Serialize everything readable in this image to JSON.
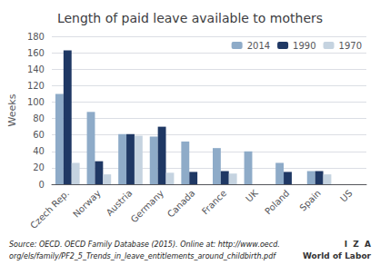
{
  "chart_data": {
    "type": "bar",
    "title": "Length of paid leave available to mothers",
    "ylabel": "Weeks",
    "categories": [
      "Czech Rep.",
      "Norway",
      "Austria",
      "Germany",
      "Canada",
      "France",
      "UK",
      "Poland",
      "Spain",
      "US"
    ],
    "series": [
      {
        "name": "2014",
        "color": "#8eabc8",
        "values": [
          110,
          88,
          61,
          58,
          52,
          44,
          40,
          26,
          16,
          0
        ]
      },
      {
        "name": "1990",
        "color": "#1f3864",
        "values": [
          163,
          28,
          61,
          70,
          15,
          16,
          0,
          15,
          16,
          0
        ]
      },
      {
        "name": "1970",
        "color": "#c5d3e0",
        "values": [
          26,
          12,
          59,
          14,
          0,
          13,
          0,
          0,
          12,
          0
        ]
      }
    ],
    "ylim": [
      0,
      180
    ],
    "yticks": [
      0,
      20,
      40,
      60,
      80,
      100,
      120,
      140,
      160,
      180
    ],
    "grid": true,
    "legend": "upper right",
    "annotations": [
      "Source: OECD. OECD Family Database (2015). Online at: http://www.oecd.",
      "org/els/family/PF2_5_Trends_in_leave_entitlements_around_childbirth.pdf",
      "I  Z  A",
      "World of Labor"
    ]
  }
}
